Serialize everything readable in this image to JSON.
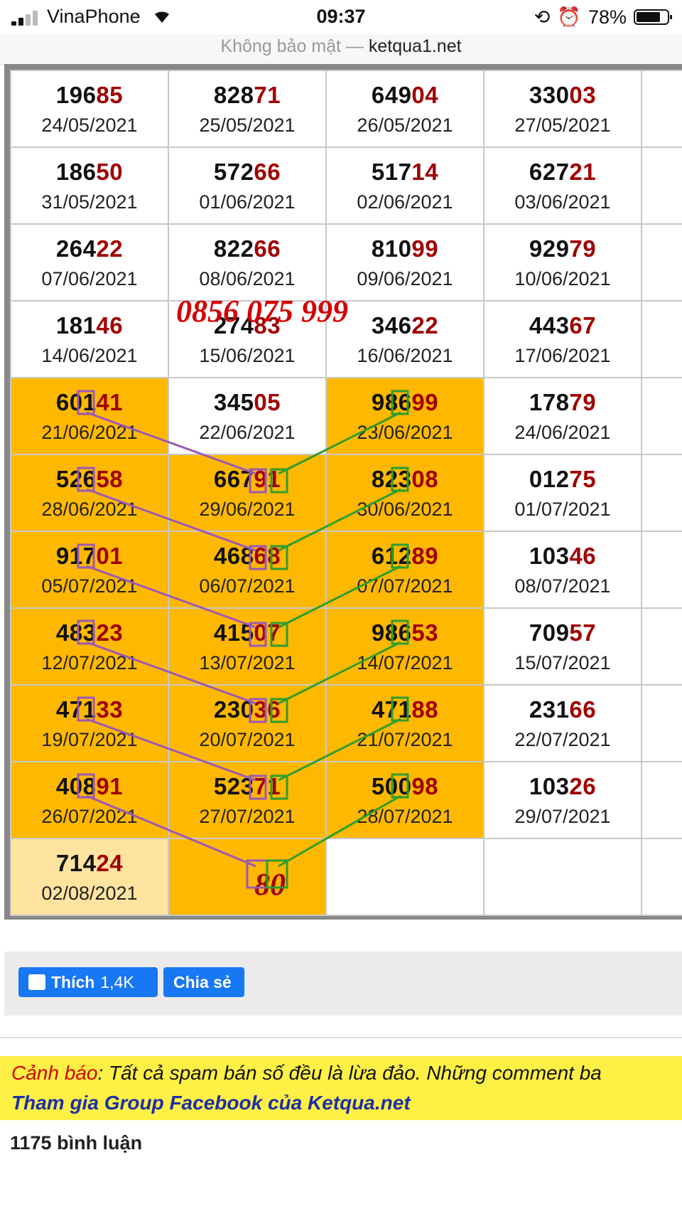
{
  "status_bar": {
    "carrier": "VinaPhone",
    "time": "09:37",
    "battery": "78%"
  },
  "url_bar": {
    "security": "Không bảo mật —",
    "domain": "ketqua1.net"
  },
  "grid": {
    "rows": [
      [
        {
          "h": "196",
          "t": "85",
          "d": "24/05/2021"
        },
        {
          "h": "828",
          "t": "71",
          "d": "25/05/2021"
        },
        {
          "h": "649",
          "t": "04",
          "d": "26/05/2021"
        },
        {
          "h": "330",
          "t": "03",
          "d": "27/05/2021"
        },
        {
          "h": "",
          "t": "",
          "d": ""
        }
      ],
      [
        {
          "h": "186",
          "t": "50",
          "d": "31/05/2021"
        },
        {
          "h": "572",
          "t": "66",
          "d": "01/06/2021"
        },
        {
          "h": "517",
          "t": "14",
          "d": "02/06/2021"
        },
        {
          "h": "627",
          "t": "21",
          "d": "03/06/2021"
        },
        {
          "h": "",
          "t": "",
          "d": ""
        }
      ],
      [
        {
          "h": "264",
          "t": "22",
          "d": "07/06/2021"
        },
        {
          "h": "822",
          "t": "66",
          "d": "08/06/2021"
        },
        {
          "h": "810",
          "t": "99",
          "d": "09/06/2021"
        },
        {
          "h": "929",
          "t": "79",
          "d": "10/06/2021"
        },
        {
          "h": "",
          "t": "",
          "d": ""
        }
      ],
      [
        {
          "h": "181",
          "t": "46",
          "d": "14/06/2021"
        },
        {
          "h": "274",
          "t": "83",
          "d": "15/06/2021"
        },
        {
          "h": "346",
          "t": "22",
          "d": "16/06/2021"
        },
        {
          "h": "443",
          "t": "67",
          "d": "17/06/2021"
        },
        {
          "h": "",
          "t": "",
          "d": ""
        }
      ],
      [
        {
          "h": "601",
          "t": "41",
          "d": "21/06/2021",
          "y": true
        },
        {
          "h": "345",
          "t": "05",
          "d": "22/06/2021"
        },
        {
          "h": "986",
          "t": "99",
          "d": "23/06/2021",
          "y": true
        },
        {
          "h": "178",
          "t": "79",
          "d": "24/06/2021"
        },
        {
          "h": "",
          "t": "",
          "d": ""
        }
      ],
      [
        {
          "h": "526",
          "t": "58",
          "d": "28/06/2021",
          "y": true
        },
        {
          "h": "667",
          "t": "91",
          "d": "29/06/2021",
          "y": true
        },
        {
          "h": "823",
          "t": "08",
          "d": "30/06/2021",
          "y": true
        },
        {
          "h": "012",
          "t": "75",
          "d": "01/07/2021"
        },
        {
          "h": "",
          "t": "",
          "d": ""
        }
      ],
      [
        {
          "h": "917",
          "t": "01",
          "d": "05/07/2021",
          "y": true
        },
        {
          "h": "468",
          "t": "68",
          "d": "06/07/2021",
          "y": true
        },
        {
          "h": "612",
          "t": "89",
          "d": "07/07/2021",
          "y": true
        },
        {
          "h": "103",
          "t": "46",
          "d": "08/07/2021"
        },
        {
          "h": "",
          "t": "",
          "d": ""
        }
      ],
      [
        {
          "h": "483",
          "t": "23",
          "d": "12/07/2021",
          "y": true
        },
        {
          "h": "415",
          "t": "07",
          "d": "13/07/2021",
          "y": true
        },
        {
          "h": "986",
          "t": "53",
          "d": "14/07/2021",
          "y": true
        },
        {
          "h": "709",
          "t": "57",
          "d": "15/07/2021"
        },
        {
          "h": "",
          "t": "",
          "d": ""
        }
      ],
      [
        {
          "h": "471",
          "t": "33",
          "d": "19/07/2021",
          "y": true
        },
        {
          "h": "230",
          "t": "36",
          "d": "20/07/2021",
          "y": true
        },
        {
          "h": "471",
          "t": "88",
          "d": "21/07/2021",
          "y": true
        },
        {
          "h": "231",
          "t": "66",
          "d": "22/07/2021"
        },
        {
          "h": "",
          "t": "",
          "d": ""
        }
      ],
      [
        {
          "h": "408",
          "t": "91",
          "d": "26/07/2021",
          "y": true
        },
        {
          "h": "523",
          "t": "71",
          "d": "27/07/2021",
          "y": true
        },
        {
          "h": "500",
          "t": "98",
          "d": "28/07/2021",
          "y": true
        },
        {
          "h": "103",
          "t": "26",
          "d": "29/07/2021"
        },
        {
          "h": "",
          "t": "",
          "d": ""
        }
      ],
      [
        {
          "h": "714",
          "t": "24",
          "d": "02/08/2021",
          "ly": true
        },
        {
          "big": "80",
          "y": true
        },
        {
          "h": "",
          "t": "",
          "d": ""
        },
        {
          "h": "",
          "t": "",
          "d": ""
        },
        {
          "h": "",
          "t": "",
          "d": ""
        }
      ]
    ]
  },
  "overlay": {
    "phone": "0856 075 999",
    "purple_color": "#9b59b6",
    "green_color": "#2e9e2e"
  },
  "social": {
    "like_label": "Thích",
    "like_count": "1,4K",
    "share_label": "Chia sẻ"
  },
  "warning": {
    "prefix": "Cảnh báo",
    "text": ": Tất cả spam bán số đều là lừa đảo. Những comment ba",
    "group_link": "Tham gia Group Facebook của Ketqua.net"
  },
  "comments": {
    "count_label": "1175 bình luận"
  }
}
